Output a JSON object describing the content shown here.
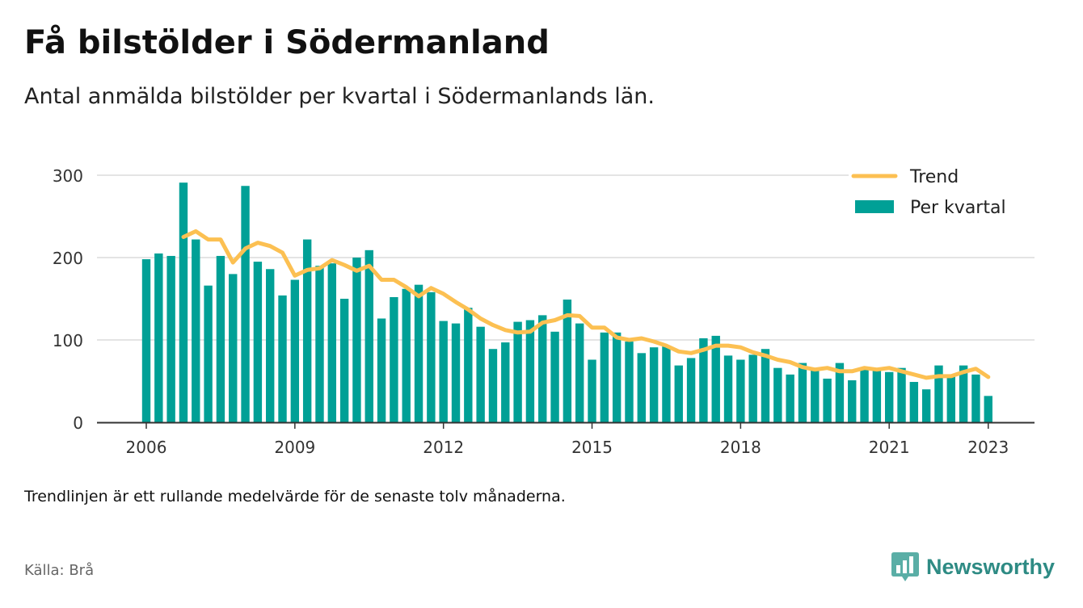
{
  "title": "Få bilstölder i Södermanland",
  "subtitle": "Antal anmälda bilstölder per kvartal i Södermanlands län.",
  "note": "Trendlinjen är ett rullande medelvärde för de senaste tolv månaderna.",
  "source": "Källa: Brå",
  "brand": "Newsworthy",
  "colors": {
    "bar": "#00a096",
    "trend": "#fcc052",
    "grid": "#dcdcdc",
    "axis": "#333333",
    "brand": "#2e8b84"
  },
  "chart_data": {
    "type": "bar",
    "title": "Få bilstölder i Södermanland",
    "subtitle": "Antal anmälda bilstölder per kvartal i Södermanlands län.",
    "xlabel": "",
    "ylabel": "",
    "ylim": [
      0,
      300
    ],
    "yticks": [
      0,
      100,
      200,
      300
    ],
    "xtick_labels": [
      "2006",
      "2009",
      "2012",
      "2015",
      "2018",
      "2021",
      "2023"
    ],
    "xtick_index": [
      0,
      12,
      24,
      36,
      48,
      60,
      68
    ],
    "grid": true,
    "legend_position": "top-right",
    "legend": [
      "Trend",
      "Per kvartal"
    ],
    "x_start": "2006 Q1",
    "x_end": "2023 Q1",
    "series": [
      {
        "name": "Per kvartal",
        "type": "bar",
        "values": [
          198,
          205,
          202,
          291,
          222,
          166,
          202,
          180,
          287,
          195,
          186,
          154,
          173,
          222,
          190,
          193,
          150,
          200,
          209,
          126,
          152,
          162,
          167,
          158,
          123,
          120,
          139,
          116,
          89,
          97,
          122,
          124,
          130,
          110,
          149,
          120,
          76,
          109,
          109,
          98,
          84,
          91,
          92,
          69,
          78,
          102,
          105,
          81,
          76,
          82,
          89,
          66,
          58,
          72,
          66,
          53,
          72,
          51,
          67,
          66,
          61,
          66,
          49,
          40,
          69,
          58,
          69,
          58,
          32
        ]
      },
      {
        "name": "Trend",
        "type": "line",
        "values": [
          null,
          null,
          null,
          225,
          232,
          222,
          222,
          194,
          211,
          218,
          214,
          206,
          178,
          185,
          187,
          197,
          191,
          184,
          190,
          173,
          173,
          164,
          153,
          163,
          156,
          146,
          137,
          126,
          118,
          112,
          109,
          110,
          121,
          124,
          130,
          129,
          115,
          115,
          103,
          100,
          102,
          98,
          93,
          86,
          84,
          88,
          93,
          93,
          91,
          85,
          81,
          76,
          73,
          67,
          64,
          66,
          62,
          62,
          66,
          64,
          66,
          62,
          58,
          54,
          56,
          56,
          61,
          65,
          55
        ]
      }
    ]
  }
}
